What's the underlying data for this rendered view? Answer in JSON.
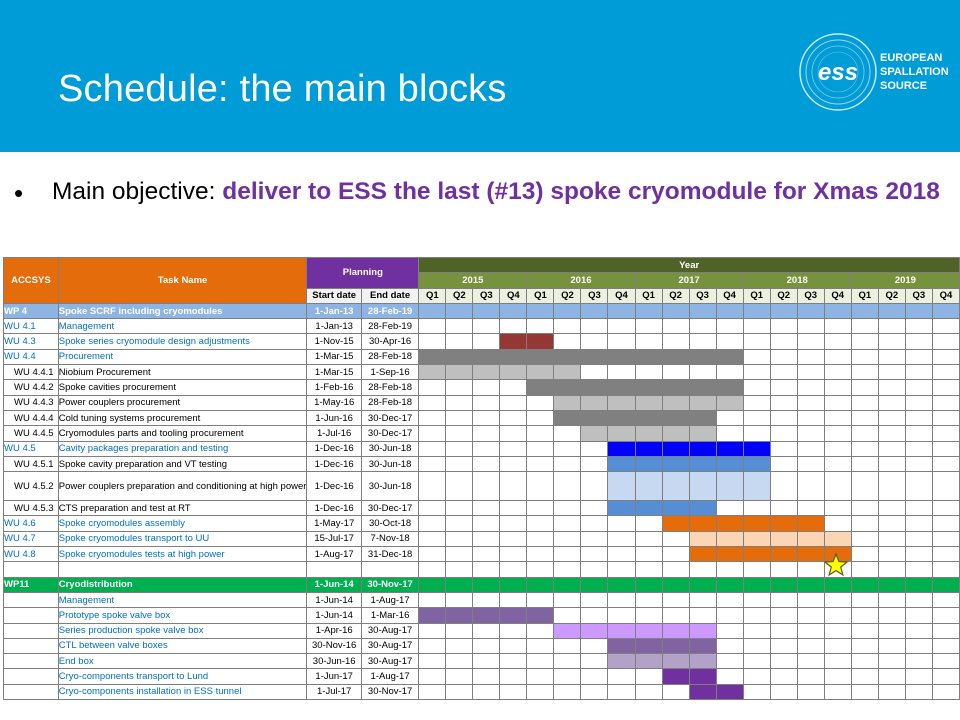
{
  "slide": {
    "title": "Schedule: the main blocks",
    "bullet": "•",
    "objective_prefix": "Main objective: ",
    "objective_highlight": "deliver to ESS the last (#13) spoke cryomodule for Xmas 2018"
  },
  "logo": {
    "mark": "ess",
    "line1": "EUROPEAN",
    "line2": "SPALLATION",
    "line3": "SOURCE"
  },
  "gantt": {
    "headers": {
      "accsys": "ACCSYS",
      "task": "Task Name",
      "planning": "Planning",
      "start": "Start date",
      "end": "End date",
      "year": "Year"
    },
    "years": [
      "2015",
      "2016",
      "2017",
      "2018",
      "2019"
    ],
    "quarters": [
      "Q1",
      "Q2",
      "Q3",
      "Q4"
    ],
    "colors": {
      "dark_red": "#953735",
      "dark_gray": "#808080",
      "light_gray": "#bfbfbf",
      "blue": "#0000ff",
      "mid_blue": "#558ed5",
      "light_blue": "#c6d9f1",
      "orange": "#e46c0a",
      "peach": "#fcd5b5",
      "purple": "#8064a2",
      "lavender": "#ccc1da",
      "violet": "#7030a0",
      "lilac": "#cc99ff",
      "light_purple": "#b3a2c7"
    },
    "rows": [
      {
        "id": "WP 4",
        "name": "Spoke SCRF including cryomodules",
        "start": "1-Jan-13",
        "end": "28-Feb-19",
        "kind": "wp4",
        "bars": []
      },
      {
        "id": "WU 4.1",
        "name": "Management",
        "start": "1-Jan-13",
        "end": "28-Feb-19",
        "kind": "wu",
        "bars": []
      },
      {
        "id": "WU 4.3",
        "name": "Spoke series cryomodule design adjustments",
        "start": "1-Nov-15",
        "end": "30-Apr-16",
        "kind": "wu",
        "bars": [
          {
            "from": 3,
            "to": 5,
            "color": "#953735"
          }
        ]
      },
      {
        "id": "WU 4.4",
        "name": "Procurement",
        "start": "1-Mar-15",
        "end": "28-Feb-18",
        "kind": "wu",
        "bars": [
          {
            "from": 0,
            "to": 12,
            "color": "#808080"
          }
        ]
      },
      {
        "id": "WU 4.4.1",
        "name": "Niobium Procurement",
        "start": "1-Mar-15",
        "end": "1-Sep-16",
        "kind": "sub",
        "bars": [
          {
            "from": 0,
            "to": 6,
            "color": "#bfbfbf"
          }
        ]
      },
      {
        "id": "WU 4.4.2",
        "name": "Spoke cavities procurement",
        "start": "1-Feb-16",
        "end": "28-Feb-18",
        "kind": "sub",
        "bars": [
          {
            "from": 4,
            "to": 12,
            "color": "#808080"
          }
        ]
      },
      {
        "id": "WU 4.4.3",
        "name": "Power couplers procurement",
        "start": "1-May-16",
        "end": "28-Feb-18",
        "kind": "sub",
        "bars": [
          {
            "from": 5,
            "to": 12,
            "color": "#bfbfbf"
          }
        ]
      },
      {
        "id": "WU 4.4.4",
        "name": "Cold tuning systems procurement",
        "start": "1-Jun-16",
        "end": "30-Dec-17",
        "kind": "sub",
        "bars": [
          {
            "from": 5,
            "to": 11,
            "color": "#808080"
          }
        ]
      },
      {
        "id": "WU 4.4.5",
        "name": "Cryomodules parts and tooling procurement",
        "start": "1-Jul-16",
        "end": "30-Dec-17",
        "kind": "sub",
        "bars": [
          {
            "from": 6,
            "to": 11,
            "color": "#bfbfbf"
          }
        ]
      },
      {
        "id": "WU 4.5",
        "name": "Cavity packages preparation and testing",
        "start": "1-Dec-16",
        "end": "30-Jun-18",
        "kind": "wu",
        "bars": [
          {
            "from": 7,
            "to": 13,
            "color": "#0000ff"
          }
        ]
      },
      {
        "id": "WU 4.5.1",
        "name": "Spoke cavity preparation and VT testing",
        "start": "1-Dec-16",
        "end": "30-Jun-18",
        "kind": "sub",
        "bars": [
          {
            "from": 7,
            "to": 13,
            "color": "#558ed5"
          }
        ]
      },
      {
        "id": "WU 4.5.2",
        "name": "Power couplers preparation and conditioning at high power",
        "start": "1-Dec-16",
        "end": "30-Jun-18",
        "kind": "sub",
        "tall": true,
        "bars": [
          {
            "from": 7,
            "to": 13,
            "color": "#c6d9f1"
          }
        ]
      },
      {
        "id": "WU 4.5.3",
        "name": "CTS preparation and test at RT",
        "start": "1-Dec-16",
        "end": "30-Dec-17",
        "kind": "sub",
        "bars": [
          {
            "from": 7,
            "to": 11,
            "color": "#558ed5"
          }
        ]
      },
      {
        "id": "WU 4.6",
        "name": "Spoke cryomodules assembly",
        "start": "1-May-17",
        "end": "30-Oct-18",
        "kind": "wu",
        "bars": [
          {
            "from": 9,
            "to": 15,
            "color": "#e46c0a"
          }
        ]
      },
      {
        "id": "WU 4.7",
        "name": "Spoke cryomodules transport to UU",
        "start": "15-Jul-17",
        "end": "7-Nov-18",
        "kind": "wu",
        "bars": [
          {
            "from": 10,
            "to": 16,
            "color": "#fcd5b5"
          }
        ]
      },
      {
        "id": "WU 4.8",
        "name": "Spoke cryomodules tests at high power",
        "start": "1-Aug-17",
        "end": "31-Dec-18",
        "kind": "wu",
        "bars": [
          {
            "from": 10,
            "to": 16,
            "color": "#e46c0a"
          }
        ]
      },
      {
        "id": "",
        "name": "",
        "start": "",
        "end": "",
        "kind": "blank",
        "bars": []
      },
      {
        "id": "WP11",
        "name": "Cryodistribution",
        "start": "1-Jun-14",
        "end": "30-Nov-17",
        "kind": "wp11",
        "bars": []
      },
      {
        "id": "",
        "name": "Management",
        "start": "1-Jun-14",
        "end": "1-Aug-17",
        "kind": "wu",
        "bars": []
      },
      {
        "id": "",
        "name": "Prototype spoke valve box",
        "start": "1-Jun-14",
        "end": "1-Mar-16",
        "kind": "wu",
        "bars": [
          {
            "from": 0,
            "to": 5,
            "color": "#8064a2"
          }
        ]
      },
      {
        "id": "",
        "name": "Series production spoke valve box",
        "start": "1-Apr-16",
        "end": "30-Aug-17",
        "kind": "wu",
        "bars": [
          {
            "from": 5,
            "to": 11,
            "color": "#cc99ff"
          }
        ]
      },
      {
        "id": "",
        "name": "CTL between valve boxes",
        "start": "30-Nov-16",
        "end": "30-Aug-17",
        "kind": "wu",
        "bars": [
          {
            "from": 7,
            "to": 11,
            "color": "#8064a2"
          }
        ]
      },
      {
        "id": "",
        "name": "End box",
        "start": "30-Jun-16",
        "end": "30-Aug-17",
        "kind": "wu",
        "bars": [
          {
            "from": 7,
            "to": 11,
            "color": "#b3a2c7"
          }
        ]
      },
      {
        "id": "",
        "name": "Cryo-components transport to Lund",
        "start": "1-Jun-17",
        "end": "1-Aug-17",
        "kind": "wu",
        "bars": [
          {
            "from": 9,
            "to": 11,
            "color": "#7030a0"
          }
        ]
      },
      {
        "id": "",
        "name": "Cryo-components installation in ESS tunnel",
        "start": "1-Jul-17",
        "end": "30-Nov-17",
        "kind": "wu",
        "bars": [
          {
            "from": 10,
            "to": 12,
            "color": "#7030a0"
          }
        ]
      }
    ]
  }
}
